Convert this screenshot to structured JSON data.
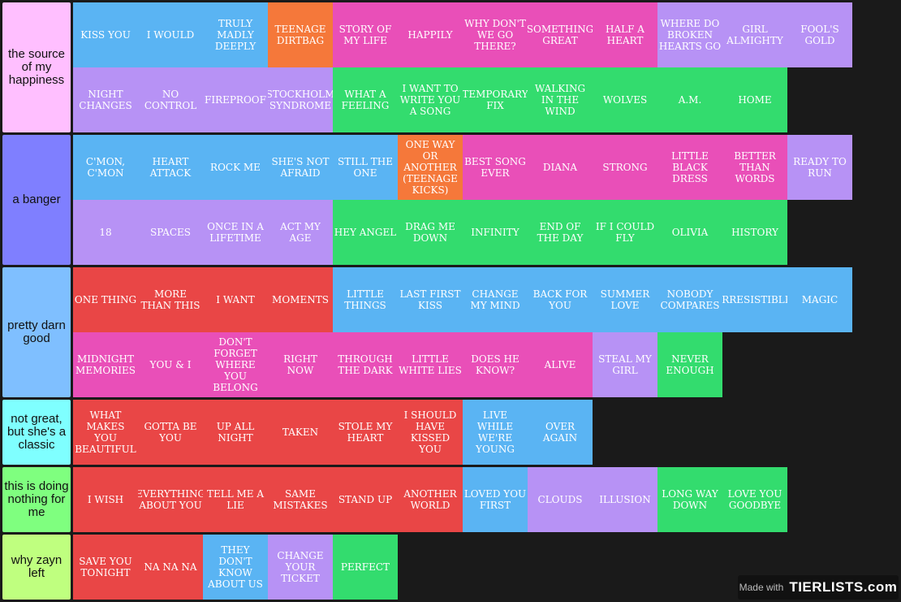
{
  "colors": {
    "blue": "#5ab4f3",
    "orange": "#f5783a",
    "pink": "#e94fb8",
    "lavender": "#b792f5",
    "green": "#33dc6e",
    "red": "#e94646"
  },
  "tiers": [
    {
      "label": "the source of my happiness",
      "color": "#ffbfff",
      "items": [
        {
          "text": "KISS YOU",
          "color": "blue"
        },
        {
          "text": "I WOULD",
          "color": "blue"
        },
        {
          "text": "TRULY MADLY DEEPLY",
          "color": "blue"
        },
        {
          "text": "TEENAGE DIRTBAG",
          "color": "orange"
        },
        {
          "text": "STORY OF MY LIFE",
          "color": "pink"
        },
        {
          "text": "HAPPILY",
          "color": "pink"
        },
        {
          "text": "WHY DON'T WE GO THERE?",
          "color": "pink"
        },
        {
          "text": "SOMETHING GREAT",
          "color": "pink"
        },
        {
          "text": "HALF A HEART",
          "color": "pink"
        },
        {
          "text": "WHERE DO BROKEN HEARTS GO",
          "color": "lavender"
        },
        {
          "text": "GIRL ALMIGHTY",
          "color": "lavender"
        },
        {
          "text": "FOOL'S GOLD",
          "color": "lavender"
        },
        {
          "text": "NIGHT CHANGES",
          "color": "lavender"
        },
        {
          "text": "NO CONTROL",
          "color": "lavender"
        },
        {
          "text": "FIREPROOF",
          "color": "lavender"
        },
        {
          "text": "STOCKHOLM SYNDROME",
          "color": "lavender"
        },
        {
          "text": "WHAT A FEELING",
          "color": "green"
        },
        {
          "text": "I WANT TO WRITE YOU A SONG",
          "color": "green"
        },
        {
          "text": "TEMPORARY FIX",
          "color": "green"
        },
        {
          "text": "WALKING IN THE WIND",
          "color": "green"
        },
        {
          "text": "WOLVES",
          "color": "green"
        },
        {
          "text": "A.M.",
          "color": "green"
        },
        {
          "text": "HOME",
          "color": "green"
        }
      ]
    },
    {
      "label": "a banger",
      "color": "#7f7fff",
      "items": [
        {
          "text": "C'MON, C'MON",
          "color": "blue"
        },
        {
          "text": "HEART ATTACK",
          "color": "blue"
        },
        {
          "text": "ROCK ME",
          "color": "blue"
        },
        {
          "text": "SHE'S NOT AFRAID",
          "color": "blue"
        },
        {
          "text": "STILL THE ONE",
          "color": "blue"
        },
        {
          "text": "ONE WAY OR ANOTHER (TEENAGE KICKS)",
          "color": "orange"
        },
        {
          "text": "BEST SONG EVER",
          "color": "pink"
        },
        {
          "text": "DIANA",
          "color": "pink"
        },
        {
          "text": "STRONG",
          "color": "pink"
        },
        {
          "text": "LITTLE BLACK DRESS",
          "color": "pink"
        },
        {
          "text": "BETTER THAN WORDS",
          "color": "pink"
        },
        {
          "text": "READY TO RUN",
          "color": "lavender"
        },
        {
          "text": "18",
          "color": "lavender"
        },
        {
          "text": "SPACES",
          "color": "lavender"
        },
        {
          "text": "ONCE IN A LIFETIME",
          "color": "lavender"
        },
        {
          "text": "ACT MY AGE",
          "color": "lavender"
        },
        {
          "text": "HEY ANGEL",
          "color": "green"
        },
        {
          "text": "DRAG ME DOWN",
          "color": "green"
        },
        {
          "text": "INFINITY",
          "color": "green"
        },
        {
          "text": "END OF THE DAY",
          "color": "green"
        },
        {
          "text": "IF I COULD FLY",
          "color": "green"
        },
        {
          "text": "OLIVIA",
          "color": "green"
        },
        {
          "text": "HISTORY",
          "color": "green"
        }
      ]
    },
    {
      "label": "pretty darn good",
      "color": "#7fbfff",
      "items": [
        {
          "text": "ONE THING",
          "color": "red"
        },
        {
          "text": "MORE THAN THIS",
          "color": "red"
        },
        {
          "text": "I WANT",
          "color": "red"
        },
        {
          "text": "MOMENTS",
          "color": "red"
        },
        {
          "text": "LITTLE THINGS",
          "color": "blue"
        },
        {
          "text": "LAST FIRST KISS",
          "color": "blue"
        },
        {
          "text": "CHANGE MY MIND",
          "color": "blue"
        },
        {
          "text": "BACK FOR YOU",
          "color": "blue"
        },
        {
          "text": "SUMMER LOVE",
          "color": "blue"
        },
        {
          "text": "NOBODY COMPARES",
          "color": "blue"
        },
        {
          "text": "IRRESISTIBLE",
          "color": "blue"
        },
        {
          "text": "MAGIC",
          "color": "blue"
        },
        {
          "text": "MIDNIGHT MEMORIES",
          "color": "pink"
        },
        {
          "text": "YOU & I",
          "color": "pink"
        },
        {
          "text": "DON'T FORGET WHERE YOU BELONG",
          "color": "pink"
        },
        {
          "text": "RIGHT NOW",
          "color": "pink"
        },
        {
          "text": "THROUGH THE DARK",
          "color": "pink"
        },
        {
          "text": "LITTLE WHITE LIES",
          "color": "pink"
        },
        {
          "text": "DOES HE KNOW?",
          "color": "pink"
        },
        {
          "text": "ALIVE",
          "color": "pink"
        },
        {
          "text": "STEAL MY GIRL",
          "color": "lavender"
        },
        {
          "text": "NEVER ENOUGH",
          "color": "green"
        }
      ]
    },
    {
      "label": "not great, but she's a classic",
      "color": "#7fffff",
      "items": [
        {
          "text": "WHAT MAKES YOU BEAUTIFUL",
          "color": "red"
        },
        {
          "text": "GOTTA BE YOU",
          "color": "red"
        },
        {
          "text": "UP ALL NIGHT",
          "color": "red"
        },
        {
          "text": "TAKEN",
          "color": "red"
        },
        {
          "text": "STOLE MY HEART",
          "color": "red"
        },
        {
          "text": "I SHOULD HAVE KISSED YOU",
          "color": "red"
        },
        {
          "text": "LIVE WHILE WE'RE YOUNG",
          "color": "blue"
        },
        {
          "text": "OVER AGAIN",
          "color": "blue"
        }
      ]
    },
    {
      "label": "this is doing nothing for me",
      "color": "#7fff7f",
      "items": [
        {
          "text": "I WISH",
          "color": "red"
        },
        {
          "text": "EVERYTHING ABOUT YOU",
          "color": "red"
        },
        {
          "text": "TELL ME A LIE",
          "color": "red"
        },
        {
          "text": "SAME MISTAKES",
          "color": "red"
        },
        {
          "text": "STAND UP",
          "color": "red"
        },
        {
          "text": "ANOTHER WORLD",
          "color": "red"
        },
        {
          "text": "LOVED YOU FIRST",
          "color": "blue"
        },
        {
          "text": "CLOUDS",
          "color": "lavender"
        },
        {
          "text": "ILLUSION",
          "color": "lavender"
        },
        {
          "text": "LONG WAY DOWN",
          "color": "green"
        },
        {
          "text": "LOVE YOU GOODBYE",
          "color": "green"
        }
      ]
    },
    {
      "label": "why zayn left",
      "color": "#bfff7f",
      "items": [
        {
          "text": "SAVE YOU TONIGHT",
          "color": "red"
        },
        {
          "text": "NA NA NA",
          "color": "red"
        },
        {
          "text": "THEY DON'T KNOW ABOUT US",
          "color": "blue"
        },
        {
          "text": "CHANGE YOUR TICKET",
          "color": "lavender"
        },
        {
          "text": "PERFECT",
          "color": "green"
        }
      ]
    }
  ],
  "watermark": {
    "made_with": "Made with",
    "brand": "TIERLISTS.com"
  }
}
